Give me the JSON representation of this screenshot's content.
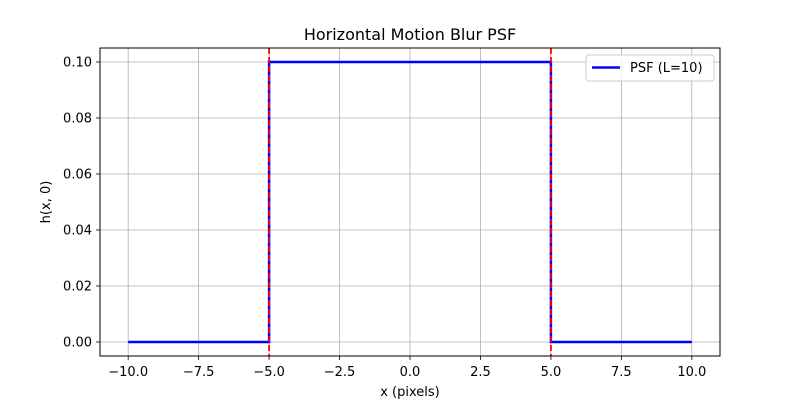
{
  "chart_data": {
    "type": "line",
    "title": "Horizontal Motion Blur PSF",
    "xlabel": "x (pixels)",
    "ylabel": "h(x, 0)",
    "xlim": [
      -11,
      11
    ],
    "ylim": [
      -0.005,
      0.105
    ],
    "xticks": [
      -10,
      -7.5,
      -5,
      -2.5,
      0,
      2.5,
      5,
      7.5,
      10
    ],
    "xtick_labels": [
      "−10.0",
      "−7.5",
      "−5.0",
      "−2.5",
      "0.0",
      "2.5",
      "5.0",
      "7.5",
      "10.0"
    ],
    "yticks": [
      0,
      0.02,
      0.04,
      0.06,
      0.08,
      0.1
    ],
    "ytick_labels": [
      "0.00",
      "0.02",
      "0.04",
      "0.06",
      "0.08",
      "0.10"
    ],
    "grid": true,
    "legend_position": "top-right",
    "series": [
      {
        "name": "PSF (L=10)",
        "color": "#0000ff",
        "points": [
          [
            -10,
            0
          ],
          [
            -5,
            0
          ],
          [
            -5,
            0.1
          ],
          [
            5,
            0.1
          ],
          [
            5,
            0
          ],
          [
            10,
            0
          ]
        ]
      }
    ],
    "vertical_lines": [
      {
        "x": -5,
        "color": "#ff0000",
        "style": "dashed"
      },
      {
        "x": 5,
        "color": "#ff0000",
        "style": "dashed"
      }
    ]
  }
}
